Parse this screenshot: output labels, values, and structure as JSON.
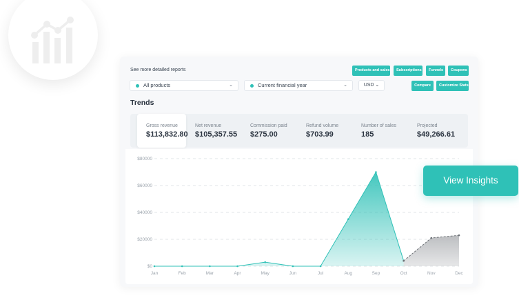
{
  "header": {
    "detail_link": "See more detailed reports",
    "buttons": [
      "Products and sales",
      "Subscriptions",
      "Funnels",
      "Coupons"
    ],
    "compare_label": "Compare",
    "customize_label": "Customize Stats"
  },
  "filters": {
    "product": "All products",
    "period": "Current financial year",
    "currency": "USD"
  },
  "section_title": "Trends",
  "stats": [
    {
      "label": "Gross revenue",
      "value": "$113,832.80"
    },
    {
      "label": "Net revenue",
      "value": "$105,357.55"
    },
    {
      "label": "Commission paid",
      "value": "$275.00"
    },
    {
      "label": "Refund volume",
      "value": "$703.99"
    },
    {
      "label": "Number of sales",
      "value": "185"
    },
    {
      "label": "Projected",
      "value": "$49,266.61"
    }
  ],
  "cta_label": "View Insights",
  "icons": [
    "chart-logo-icon",
    "chevron-down-icon"
  ],
  "colors": {
    "accent": "#2fc1b7",
    "projected": "#c9cbce"
  },
  "chart_data": {
    "type": "area",
    "categories": [
      "Jan",
      "Feb",
      "Mar",
      "Apr",
      "May",
      "Jun",
      "Jul",
      "Aug",
      "Sep",
      "Oct",
      "Nov",
      "Dec"
    ],
    "yticks": [
      "$0",
      "$20000",
      "$40000",
      "$60000",
      "$80000"
    ],
    "ylim": [
      0,
      80000
    ],
    "grid": true,
    "series": [
      {
        "values": [
          0,
          0,
          0,
          0,
          3000,
          0,
          0,
          35000,
          70000,
          4000,
          null,
          null
        ]
      },
      {
        "values": [
          null,
          null,
          null,
          null,
          null,
          null,
          null,
          null,
          null,
          4000,
          21000,
          23000
        ]
      }
    ]
  }
}
